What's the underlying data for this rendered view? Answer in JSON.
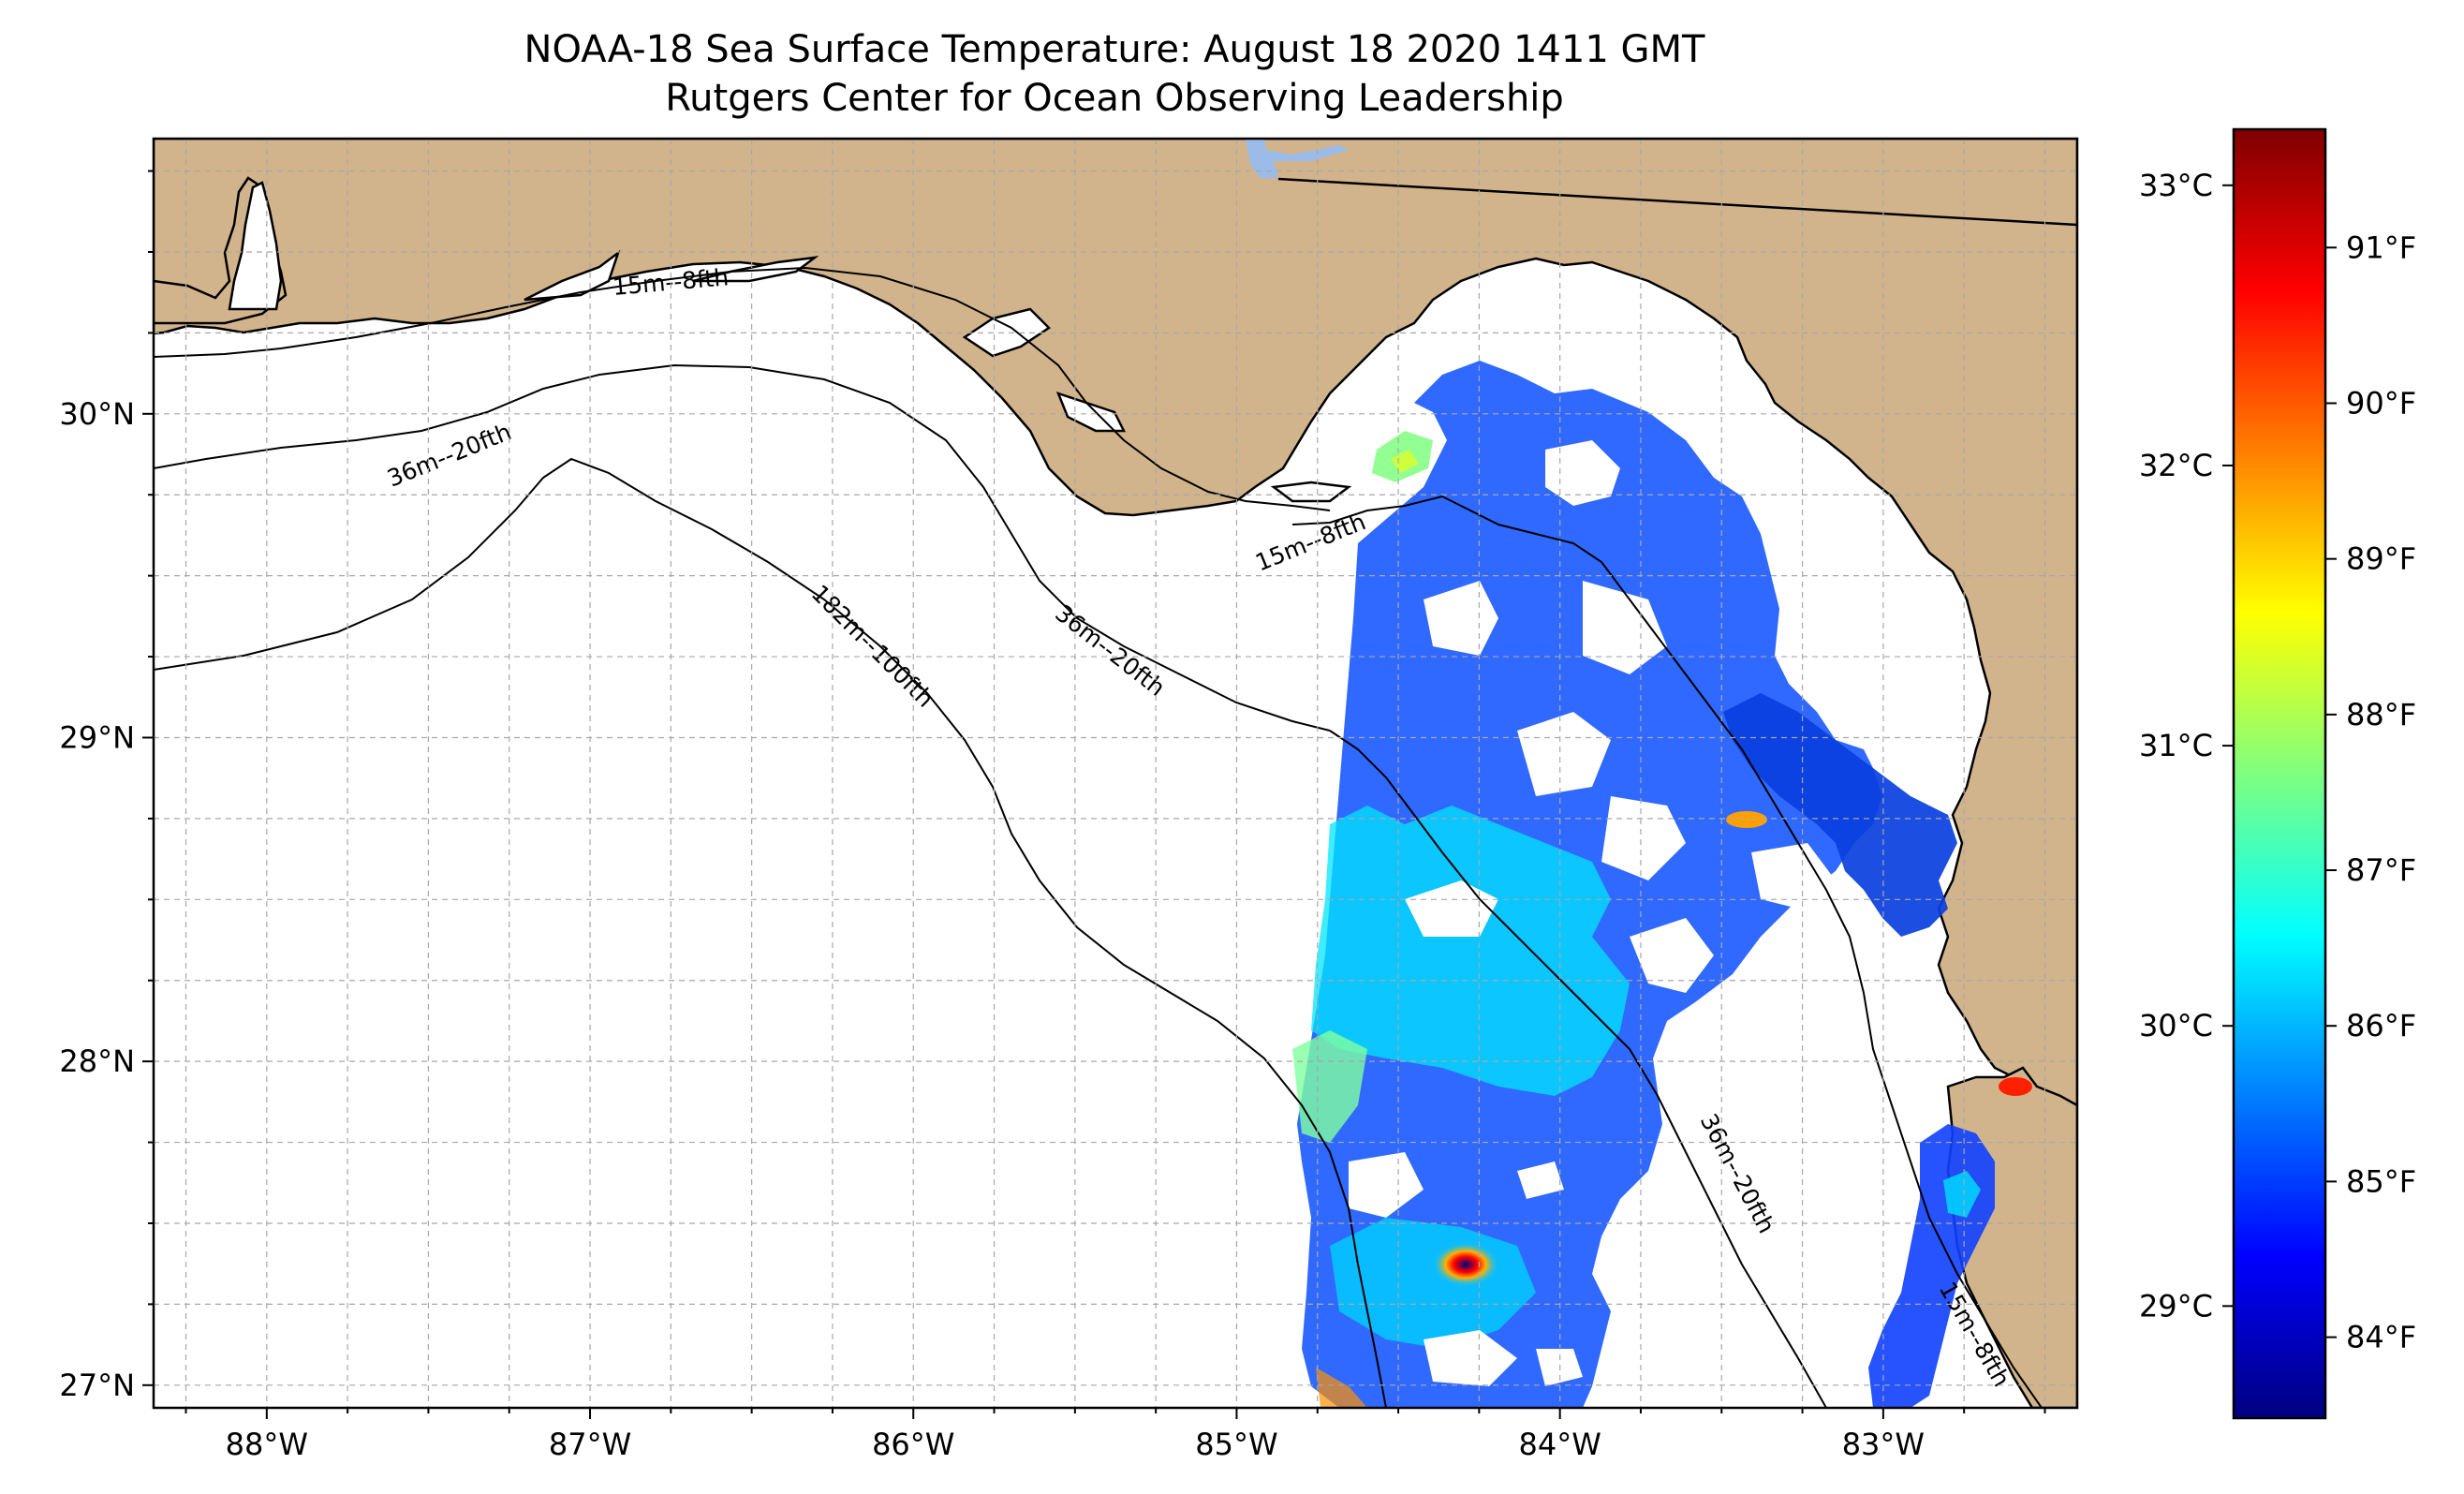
{
  "title": {
    "line1": "NOAA-18 Sea Surface Temperature: August 18 2020 1411 GMT",
    "line2": "Rutgers Center for Ocean Observing Leadership"
  },
  "map": {
    "lon_range": [
      -88.35,
      -82.4
    ],
    "lat_range": [
      26.93,
      30.85
    ],
    "land_color": "#d2b48c",
    "ocean_color": "#ffffff",
    "coastline_color": "#000000",
    "lake_color": "#9bbce8",
    "grid": "dashed light gray",
    "lon_ticks": [
      {
        "value": -88,
        "label": "88°W"
      },
      {
        "value": -87,
        "label": "87°W"
      },
      {
        "value": -86,
        "label": "86°W"
      },
      {
        "value": -85,
        "label": "85°W"
      },
      {
        "value": -84,
        "label": "84°W"
      },
      {
        "value": -83,
        "label": "83°W"
      }
    ],
    "lat_ticks": [
      {
        "value": 30,
        "label": "30°N"
      },
      {
        "value": 29,
        "label": "29°N"
      },
      {
        "value": 28,
        "label": "28°N"
      },
      {
        "value": 27,
        "label": "27°N"
      }
    ],
    "contour_labels": [
      {
        "text": "15m--8fth"
      },
      {
        "text": "36m--20fth"
      },
      {
        "text": "15m--8fth"
      },
      {
        "text": "36m--20fth"
      },
      {
        "text": "182m--100fth"
      },
      {
        "text": "36m--20fth"
      },
      {
        "text": "15m--8fth"
      }
    ]
  },
  "colorbar": {
    "colormap": "jet",
    "colormap_stops": [
      "#00007f",
      "#0000ff",
      "#007fff",
      "#00ffff",
      "#7fff7f",
      "#ffff00",
      "#ff7f00",
      "#ff0000",
      "#7f0000"
    ],
    "celsius_range": [
      28.6,
      33.2
    ],
    "celsius_ticks": [
      {
        "value": 29,
        "label": "29°C"
      },
      {
        "value": 30,
        "label": "30°C"
      },
      {
        "value": 31,
        "label": "31°C"
      },
      {
        "value": 32,
        "label": "32°C"
      },
      {
        "value": 33,
        "label": "33°C"
      }
    ],
    "fahrenheit_ticks": [
      {
        "value": 84,
        "label": "84°F"
      },
      {
        "value": 85,
        "label": "85°F"
      },
      {
        "value": 86,
        "label": "86°F"
      },
      {
        "value": 87,
        "label": "87°F"
      },
      {
        "value": 88,
        "label": "88°F"
      },
      {
        "value": 89,
        "label": "89°F"
      },
      {
        "value": 90,
        "label": "90°F"
      },
      {
        "value": 91,
        "label": "91°F"
      }
    ]
  }
}
